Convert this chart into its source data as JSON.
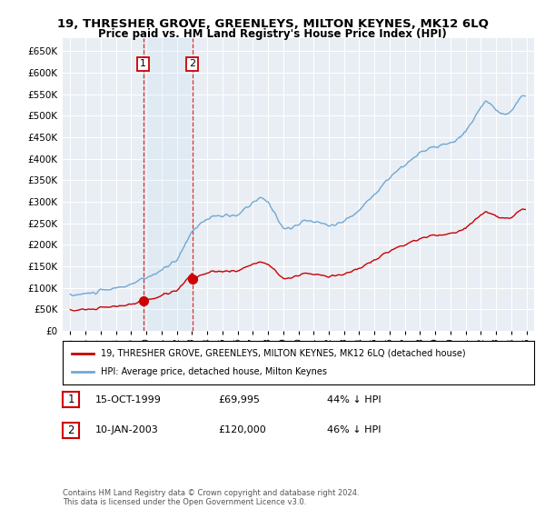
{
  "title": "19, THRESHER GROVE, GREENLEYS, MILTON KEYNES, MK12 6LQ",
  "subtitle": "Price paid vs. HM Land Registry's House Price Index (HPI)",
  "legend_line1": "19, THRESHER GROVE, GREENLEYS, MILTON KEYNES, MK12 6LQ (detached house)",
  "legend_line2": "HPI: Average price, detached house, Milton Keynes",
  "annotation1_label": "1",
  "annotation1_date": "15-OCT-1999",
  "annotation1_price": "£69,995",
  "annotation1_hpi": "44% ↓ HPI",
  "annotation2_label": "2",
  "annotation2_date": "10-JAN-2003",
  "annotation2_price": "£120,000",
  "annotation2_hpi": "46% ↓ HPI",
  "footer": "Contains HM Land Registry data © Crown copyright and database right 2024.\nThis data is licensed under the Open Government Licence v3.0.",
  "hpi_color": "#6fa8d5",
  "price_color": "#cc0000",
  "sale1_x": 1999.79,
  "sale1_y": 69995,
  "sale2_x": 2003.03,
  "sale2_y": 120000,
  "ylim": [
    0,
    680000
  ],
  "xlim": [
    1994.5,
    2025.5
  ],
  "yticks": [
    0,
    50000,
    100000,
    150000,
    200000,
    250000,
    300000,
    350000,
    400000,
    450000,
    500000,
    550000,
    600000,
    650000
  ],
  "ytick_labels": [
    "£0",
    "£50K",
    "£100K",
    "£150K",
    "£200K",
    "£250K",
    "£300K",
    "£350K",
    "£400K",
    "£450K",
    "£500K",
    "£550K",
    "£600K",
    "£650K"
  ],
  "background_color": "#e8eef4",
  "grid_color": "#ffffff"
}
